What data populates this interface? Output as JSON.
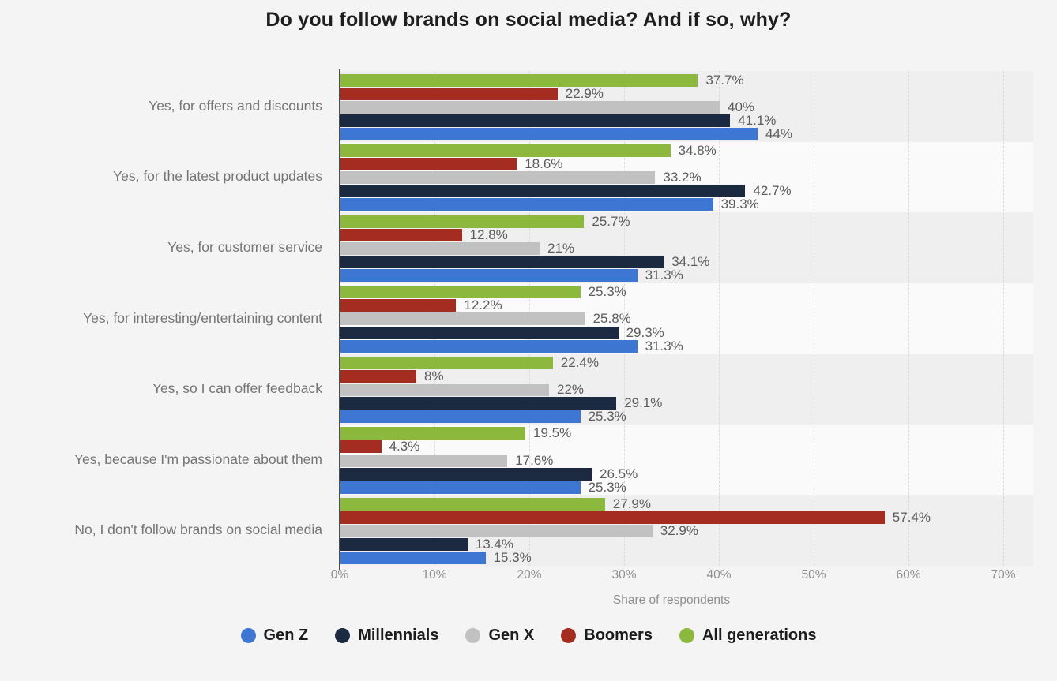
{
  "chart_data": {
    "type": "bar",
    "orientation": "horizontal",
    "title": "Do you follow brands on social media? And if so, why?",
    "xlabel": "Share of respondents",
    "xlim": [
      0,
      70
    ],
    "x_tick_values": [
      0,
      10,
      20,
      30,
      40,
      50,
      60,
      70
    ],
    "x_tick_labels": [
      "0%",
      "10%",
      "20%",
      "30%",
      "40%",
      "50%",
      "60%",
      "70%"
    ],
    "grid": "vertical-dashed",
    "legend_position": "bottom",
    "value_label_format": "percent",
    "categories": [
      "Yes, for offers and discounts",
      "Yes, for the latest product updates",
      "Yes, for customer service",
      "Yes, for interesting/entertaining content",
      "Yes, so I can offer feedback",
      "Yes, because I'm passionate about them",
      "No, I don't follow brands on social media"
    ],
    "series": [
      {
        "name": "Gen Z",
        "color": "#3d76d3",
        "values": [
          44,
          39.3,
          31.3,
          31.3,
          25.3,
          25.3,
          15.3
        ]
      },
      {
        "name": "Millennials",
        "color": "#1b2a40",
        "values": [
          41.1,
          42.7,
          34.1,
          29.3,
          29.1,
          26.5,
          13.4
        ]
      },
      {
        "name": "Gen X",
        "color": "#c1c1c1",
        "values": [
          40,
          33.2,
          21,
          25.8,
          22,
          17.6,
          32.9
        ]
      },
      {
        "name": "Boomers",
        "color": "#a52c20",
        "values": [
          22.9,
          18.6,
          12.8,
          12.2,
          8,
          4.3,
          57.4
        ]
      },
      {
        "name": "All generations",
        "color": "#8cb83e",
        "values": [
          37.7,
          34.8,
          25.7,
          25.3,
          22.4,
          19.5,
          27.9
        ]
      }
    ],
    "bar_order_top_to_bottom": [
      "All generations",
      "Boomers",
      "Gen X",
      "Millennials",
      "Gen Z"
    ],
    "band_colors": [
      "#efefef",
      "#fafafa"
    ],
    "background_color": "#f4f4f4",
    "axis_line_color": "#4d4d4d",
    "gridline_color": "#d9d9d9"
  }
}
